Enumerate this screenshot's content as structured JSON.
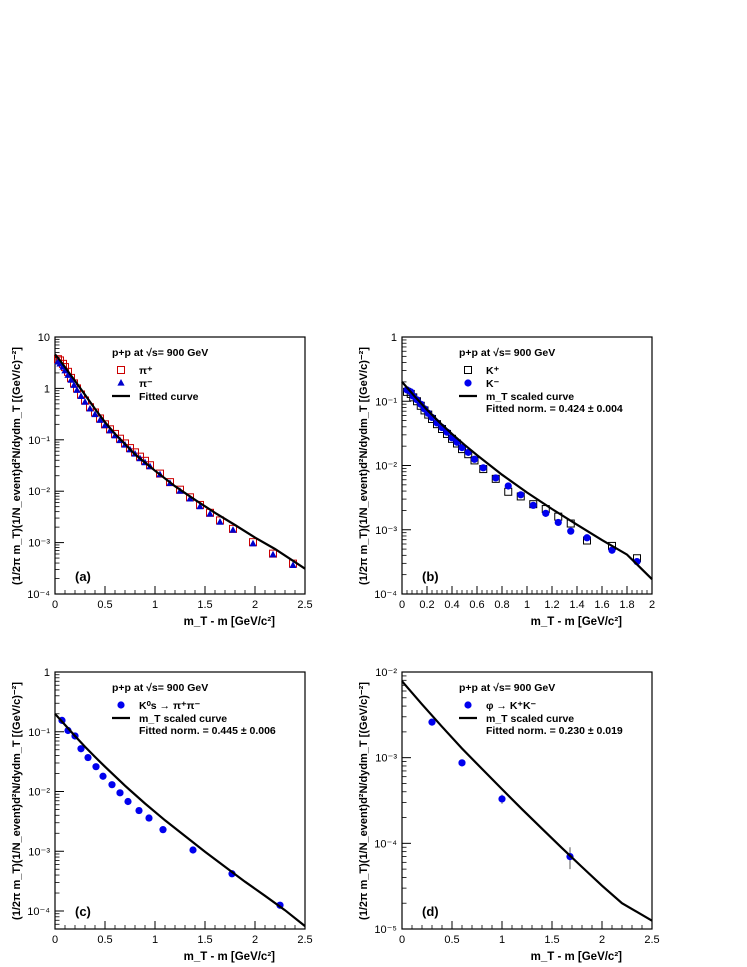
{
  "chart_data": [
    {
      "type": "scatter",
      "panel_label": "(a)",
      "title": "p+p at √s= 900 GeV",
      "xlabel": "m_T - m [GeV/c²]",
      "ylabel": "(1/2π m_T)(1/N_event)d²N/dydm_T [(GeV/c)⁻²]",
      "xlim": [
        0,
        2.5
      ],
      "ylim": [
        0.0001,
        10
      ],
      "yscale": "log",
      "x_ticks": [
        "0",
        "0.5",
        "1",
        "1.5",
        "2",
        "2.5"
      ],
      "y_ticks": [
        "10⁻⁴",
        "10⁻³",
        "10⁻²",
        "10⁻¹",
        "1",
        "10"
      ],
      "legend_position": "top-right",
      "series": [
        {
          "name": "π⁺",
          "marker": "open-square",
          "color": "#cc0000",
          "x": [
            0.03,
            0.05,
            0.08,
            0.1,
            0.13,
            0.16,
            0.19,
            0.22,
            0.26,
            0.3,
            0.35,
            0.4,
            0.45,
            0.5,
            0.55,
            0.6,
            0.65,
            0.7,
            0.75,
            0.8,
            0.85,
            0.9,
            0.95,
            1.05,
            1.15,
            1.25,
            1.35,
            1.45,
            1.55,
            1.65,
            1.78,
            1.98,
            2.18,
            2.38
          ],
          "y": [
            3.7,
            3.5,
            3.0,
            2.6,
            2.1,
            1.6,
            1.25,
            1.0,
            0.76,
            0.58,
            0.43,
            0.34,
            0.26,
            0.2,
            0.16,
            0.13,
            0.105,
            0.085,
            0.069,
            0.057,
            0.047,
            0.039,
            0.032,
            0.022,
            0.015,
            0.0107,
            0.0076,
            0.0054,
            0.0038,
            0.0027,
            0.00185,
            0.00102,
            0.00061,
            0.00039
          ]
        },
        {
          "name": "π⁻",
          "marker": "triangle",
          "color": "#0000cc",
          "x": [
            0.03,
            0.05,
            0.08,
            0.1,
            0.13,
            0.16,
            0.19,
            0.22,
            0.26,
            0.3,
            0.35,
            0.4,
            0.45,
            0.5,
            0.55,
            0.6,
            0.65,
            0.7,
            0.75,
            0.8,
            0.85,
            0.9,
            0.95,
            1.05,
            1.15,
            1.25,
            1.35,
            1.45,
            1.55,
            1.65,
            1.78,
            1.98,
            2.18,
            2.38
          ],
          "y": [
            3.3,
            3.0,
            2.6,
            2.2,
            1.8,
            1.45,
            1.15,
            0.92,
            0.7,
            0.54,
            0.4,
            0.31,
            0.24,
            0.19,
            0.15,
            0.12,
            0.097,
            0.079,
            0.064,
            0.053,
            0.043,
            0.036,
            0.03,
            0.021,
            0.0142,
            0.01,
            0.0071,
            0.005,
            0.0036,
            0.0025,
            0.00175,
            0.00095,
            0.00058,
            0.00036
          ]
        },
        {
          "name": "Fitted curve",
          "marker": "line",
          "color": "#000000",
          "x": [
            0,
            0.05,
            0.1,
            0.15,
            0.2,
            0.3,
            0.4,
            0.5,
            0.6,
            0.8,
            1.0,
            1.2,
            1.4,
            1.6,
            1.8,
            2.0,
            2.2,
            2.5
          ],
          "y": [
            4.6,
            3.5,
            2.6,
            1.9,
            1.4,
            0.75,
            0.4,
            0.22,
            0.13,
            0.052,
            0.025,
            0.0125,
            0.0068,
            0.0038,
            0.0022,
            0.00125,
            0.00075,
            0.00031
          ]
        }
      ]
    },
    {
      "type": "scatter",
      "panel_label": "(b)",
      "title": "p+p at √s= 900 GeV",
      "xlabel": "m_T - m [GeV/c²]",
      "ylabel": "(1/2π m_T)(1/N_event)d²N/dydm_T [(GeV/c)⁻²]",
      "xlim": [
        0,
        2
      ],
      "ylim": [
        0.0001,
        1
      ],
      "yscale": "log",
      "x_ticks": [
        "0",
        "0.2",
        "0.4",
        "0.6",
        "0.8",
        "1",
        "1.2",
        "1.4",
        "1.6",
        "1.8",
        "2"
      ],
      "y_ticks": [
        "10⁻⁴",
        "10⁻³",
        "10⁻²",
        "10⁻¹",
        "1"
      ],
      "legend_position": "top-right",
      "annotation": "Fitted norm. = 0.424 ± 0.004",
      "series": [
        {
          "name": "K⁺",
          "marker": "open-square",
          "color": "#000000",
          "x": [
            0.04,
            0.07,
            0.09,
            0.12,
            0.15,
            0.18,
            0.21,
            0.24,
            0.28,
            0.32,
            0.36,
            0.4,
            0.44,
            0.48,
            0.53,
            0.58,
            0.65,
            0.75,
            0.85,
            0.95,
            1.05,
            1.15,
            1.25,
            1.35,
            1.48,
            1.68,
            1.88
          ],
          "y": [
            0.14,
            0.13,
            0.115,
            0.1,
            0.085,
            0.072,
            0.062,
            0.053,
            0.044,
            0.037,
            0.031,
            0.026,
            0.022,
            0.018,
            0.015,
            0.012,
            0.0088,
            0.0062,
            0.0039,
            0.0033,
            0.0025,
            0.0021,
            0.0016,
            0.00125,
            0.00068,
            0.00056,
            0.00036
          ]
        },
        {
          "name": "K⁻",
          "marker": "circle",
          "color": "#0000ee",
          "x": [
            0.04,
            0.07,
            0.09,
            0.12,
            0.15,
            0.18,
            0.21,
            0.24,
            0.28,
            0.32,
            0.36,
            0.4,
            0.44,
            0.48,
            0.53,
            0.58,
            0.65,
            0.75,
            0.85,
            0.95,
            1.05,
            1.15,
            1.25,
            1.35,
            1.48,
            1.68,
            1.88
          ],
          "y": [
            0.15,
            0.14,
            0.12,
            0.105,
            0.09,
            0.076,
            0.065,
            0.056,
            0.046,
            0.039,
            0.033,
            0.027,
            0.023,
            0.019,
            0.016,
            0.0125,
            0.0092,
            0.0064,
            0.0048,
            0.0035,
            0.0024,
            0.0018,
            0.0013,
            0.00095,
            0.00075,
            0.00048,
            0.00032
          ]
        },
        {
          "name": "m_T scaled curve",
          "marker": "line",
          "color": "#000000",
          "x": [
            0,
            0.1,
            0.2,
            0.3,
            0.4,
            0.5,
            0.6,
            0.8,
            1.0,
            1.2,
            1.4,
            1.6,
            1.8,
            2.0
          ],
          "y": [
            0.2,
            0.12,
            0.074,
            0.047,
            0.031,
            0.021,
            0.0145,
            0.0072,
            0.0038,
            0.0021,
            0.0012,
            0.00069,
            0.00041,
            0.00017
          ]
        }
      ]
    },
    {
      "type": "scatter",
      "panel_label": "(c)",
      "title": "p+p at √s= 900 GeV",
      "xlabel": "m_T - m [GeV/c²]",
      "ylabel": "(1/2π m_T)(1/N_event)d²N/dydm_T [(GeV/c)⁻²]",
      "xlim": [
        0,
        2.5
      ],
      "ylim": [
        5e-05,
        1
      ],
      "yscale": "log",
      "x_ticks": [
        "0",
        "0.5",
        "1",
        "1.5",
        "2",
        "2.5"
      ],
      "y_ticks": [
        "10⁻⁴",
        "10⁻³",
        "10⁻²",
        "10⁻¹",
        "1"
      ],
      "legend_position": "top-right",
      "annotation": "Fitted norm. = 0.445 ± 0.006",
      "series": [
        {
          "name": "K⁰s → π⁺π⁻",
          "marker": "circle",
          "color": "#0000ee",
          "x": [
            0.07,
            0.13,
            0.2,
            0.26,
            0.33,
            0.41,
            0.48,
            0.57,
            0.65,
            0.73,
            0.84,
            0.94,
            1.08,
            1.38,
            1.77,
            2.25
          ],
          "y": [
            0.155,
            0.105,
            0.085,
            0.052,
            0.037,
            0.026,
            0.018,
            0.013,
            0.0095,
            0.0068,
            0.0048,
            0.0036,
            0.0023,
            0.00105,
            0.00042,
            0.000125
          ]
        },
        {
          "name": "m_T scaled curve",
          "marker": "line",
          "color": "#000000",
          "x": [
            0,
            0.1,
            0.2,
            0.3,
            0.4,
            0.5,
            0.7,
            0.9,
            1.1,
            1.3,
            1.5,
            1.7,
            1.9,
            2.1,
            2.3,
            2.5
          ],
          "y": [
            0.2,
            0.13,
            0.085,
            0.056,
            0.038,
            0.026,
            0.0125,
            0.0063,
            0.0033,
            0.0018,
            0.00098,
            0.00055,
            0.00031,
            0.00018,
            0.000103,
            5.6e-05
          ]
        }
      ]
    },
    {
      "type": "scatter",
      "panel_label": "(d)",
      "title": "p+p at √s= 900 GeV",
      "xlabel": "m_T - m [GeV/c²]",
      "ylabel": "(1/2π m_T)(1/N_event)d²N/dydm_T [(GeV/c)⁻²]",
      "xlim": [
        0,
        2.5
      ],
      "ylim": [
        1e-05,
        0.01
      ],
      "yscale": "log",
      "x_ticks": [
        "0",
        "0.5",
        "1",
        "1.5",
        "2",
        "2.5"
      ],
      "y_ticks": [
        "10⁻⁵",
        "10⁻⁴",
        "10⁻³",
        "10⁻²"
      ],
      "legend_position": "top-right",
      "annotation": "Fitted norm. = 0.230 ± 0.019",
      "series": [
        {
          "name": "φ → K⁺K⁻",
          "marker": "circle",
          "color": "#0000ee",
          "x": [
            0.3,
            0.6,
            1.0,
            1.68
          ],
          "y": [
            0.0026,
            0.00087,
            0.00033,
            7e-05
          ],
          "yerr": [
            8e-05,
            5e-05,
            4e-05,
            2e-05
          ]
        },
        {
          "name": "m_T scaled curve",
          "marker": "line",
          "color": "#000000",
          "x": [
            0,
            0.2,
            0.4,
            0.6,
            0.8,
            1.0,
            1.2,
            1.4,
            1.6,
            1.8,
            2.0,
            2.2,
            2.5
          ],
          "y": [
            0.0078,
            0.0042,
            0.0023,
            0.00128,
            0.00074,
            0.00043,
            0.00025,
            0.000148,
            8.8e-05,
            5.3e-05,
            3.2e-05,
            2e-05,
            1.25e-05
          ]
        }
      ]
    }
  ]
}
